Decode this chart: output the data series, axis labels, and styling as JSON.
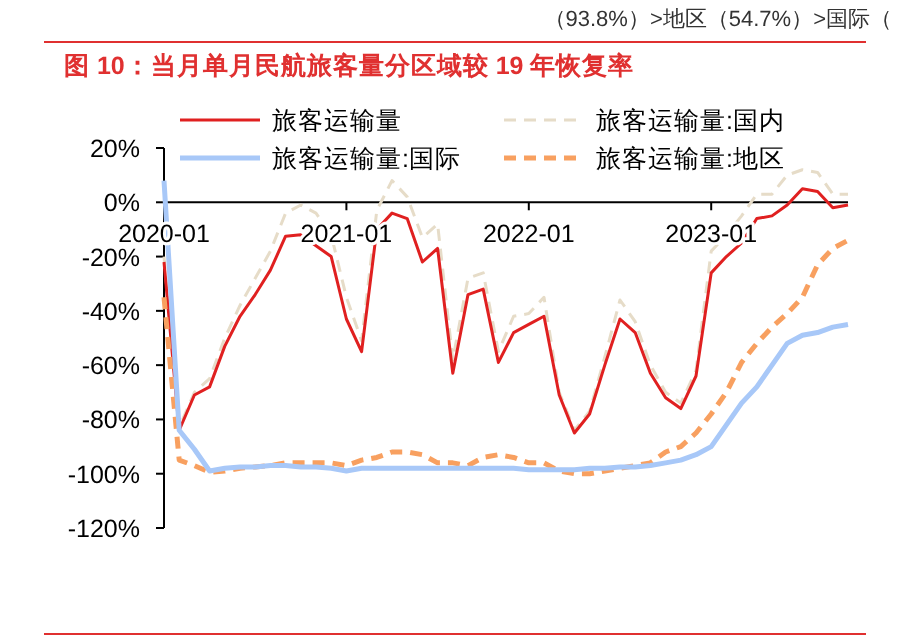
{
  "chart_data": {
    "type": "line",
    "title": "图 10：当月单月民航旅客量分区域较 19 年恢复率",
    "annotations": [
      "（93.8%）>地区（54.7%）>国际（"
    ],
    "x": [
      "2020-01",
      "2020-02",
      "2020-03",
      "2020-04",
      "2020-05",
      "2020-06",
      "2020-07",
      "2020-08",
      "2020-09",
      "2020-10",
      "2020-11",
      "2020-12",
      "2021-01",
      "2021-02",
      "2021-03",
      "2021-04",
      "2021-05",
      "2021-06",
      "2021-07",
      "2021-08",
      "2021-09",
      "2021-10",
      "2021-11",
      "2021-12",
      "2022-01",
      "2022-02",
      "2022-03",
      "2022-04",
      "2022-05",
      "2022-06",
      "2022-07",
      "2022-08",
      "2022-09",
      "2022-10",
      "2022-11",
      "2022-12",
      "2023-01",
      "2023-02",
      "2023-03",
      "2023-04",
      "2023-05",
      "2023-06",
      "2023-07",
      "2023-08",
      "2023-09",
      "2023-10"
    ],
    "series": [
      {
        "name": "旅客运输量",
        "color": "#e02020",
        "line_style": "solid",
        "values": [
          -22,
          -84,
          -71,
          -68,
          -53,
          -42,
          -34,
          -25,
          -12.5,
          -12,
          -16,
          -20,
          -43,
          -55,
          -10,
          -4,
          -6,
          -22,
          -17,
          -63,
          -34,
          -32,
          -59,
          -48,
          -45,
          -42,
          -71,
          -85,
          -78,
          -60,
          -43,
          -48,
          -63,
          -72,
          -76,
          -64,
          -26,
          -20,
          -15,
          -6,
          -5,
          -1,
          5,
          4,
          -2,
          -1
        ]
      },
      {
        "name": "旅客运输量:国内",
        "color": "#e6dcc8",
        "line_style": "dashed",
        "values": [
          -20,
          -83,
          -70,
          -65,
          -50,
          -38,
          -28,
          -18,
          -4,
          -1,
          -4,
          -12,
          -35,
          -51,
          -3,
          8,
          2,
          -13,
          -8,
          -58,
          -28,
          -26,
          -55,
          -42,
          -41,
          -35,
          -70,
          -84,
          -77,
          -57,
          -36,
          -44,
          -60,
          -70,
          -74,
          -62,
          -18,
          -12,
          -5,
          3,
          3,
          10,
          12,
          11,
          3,
          3
        ]
      },
      {
        "name": "旅客运输量:国际",
        "color": "#a8c8f8",
        "line_style": "solid",
        "values": [
          8,
          -84,
          -91,
          -99,
          -98,
          -97.5,
          -97.5,
          -97,
          -97,
          -97.5,
          -97.5,
          -98,
          -99,
          -98,
          -98,
          -98,
          -98,
          -98,
          -98,
          -98,
          -98,
          -98,
          -98,
          -98,
          -98.5,
          -98.5,
          -98.5,
          -98.5,
          -98,
          -98,
          -97.5,
          -97.5,
          -97,
          -96,
          -95,
          -93,
          -90,
          -82,
          -74,
          -68,
          -60,
          -52,
          -49,
          -48,
          -46,
          -45
        ]
      },
      {
        "name": "旅客运输量:地区",
        "color": "#f8a060",
        "line_style": "dashed",
        "values": [
          -35,
          -95,
          -97,
          -99.5,
          -99,
          -98,
          -97.5,
          -97,
          -96,
          -96,
          -96,
          -96,
          -97,
          -95,
          -94,
          -92,
          -92,
          -93,
          -96,
          -96,
          -97,
          -94,
          -93,
          -94,
          -96,
          -96,
          -99,
          -100,
          -100,
          -99,
          -98,
          -97,
          -96,
          -92,
          -90,
          -85,
          -78,
          -70,
          -59,
          -52,
          -46,
          -41,
          -35,
          -23,
          -17,
          -14
        ]
      }
    ],
    "xlim": [
      "2020-01",
      "2023-10"
    ],
    "xticks": [
      "2020-01",
      "2021-01",
      "2022-01",
      "2023-01"
    ],
    "ylim": [
      -120,
      20
    ],
    "yticks": [
      {
        "value": 20,
        "label": "20%"
      },
      {
        "value": 0,
        "label": "0%"
      },
      {
        "value": -20,
        "label": "-20%"
      },
      {
        "value": -40,
        "label": "-40%"
      },
      {
        "value": -60,
        "label": "-60%"
      },
      {
        "value": -80,
        "label": "-80%"
      },
      {
        "value": -100,
        "label": "-100%"
      },
      {
        "value": -120,
        "label": "-120%"
      }
    ],
    "legend": "top",
    "grid": false,
    "marker": "none"
  }
}
